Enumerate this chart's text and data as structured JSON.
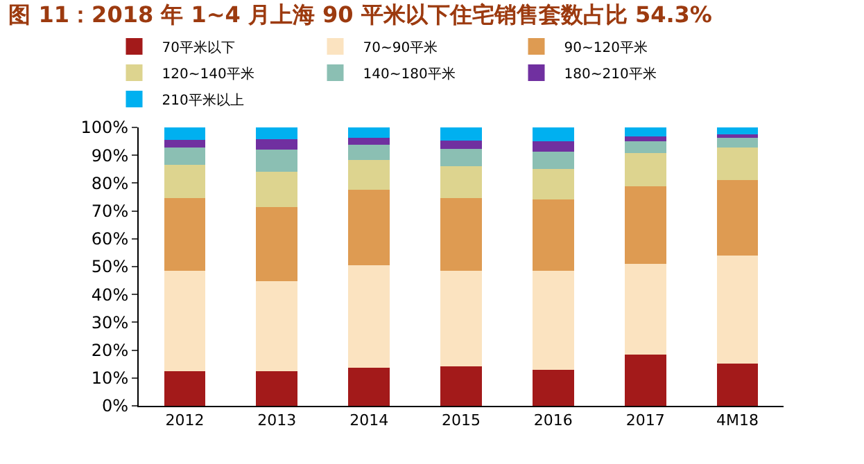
{
  "chart_data": {
    "type": "bar",
    "stacked": true,
    "title": "图 11：2018 年 1~4 月上海 90 平米以下住宅销售套数占比 54.3%",
    "categories": [
      "2012",
      "2013",
      "2014",
      "2015",
      "2016",
      "2017",
      "4M18"
    ],
    "series": [
      {
        "name": "70平米以下",
        "color": "#a31a1a",
        "values": [
          12.5,
          12.5,
          13.7,
          14.3,
          13.0,
          18.3,
          15.1
        ]
      },
      {
        "name": "70~90平米",
        "color": "#fbe3c0",
        "values": [
          36.0,
          32.4,
          36.9,
          34.2,
          35.5,
          32.8,
          38.8
        ]
      },
      {
        "name": "90~120平米",
        "color": "#de9b52",
        "values": [
          26.1,
          26.6,
          27.1,
          26.1,
          25.6,
          27.7,
          27.1
        ]
      },
      {
        "name": "120~140平米",
        "color": "#ddd48f",
        "values": [
          12.0,
          12.5,
          10.5,
          11.5,
          10.9,
          12.0,
          11.9
        ]
      },
      {
        "name": "140~180平米",
        "color": "#8bbfb3",
        "values": [
          6.3,
          8.0,
          5.5,
          6.2,
          6.3,
          4.2,
          3.3
        ]
      },
      {
        "name": "180~210平米",
        "color": "#7030a0",
        "values": [
          2.6,
          3.7,
          2.6,
          3.0,
          3.7,
          1.7,
          1.2
        ]
      },
      {
        "name": "210平米以上",
        "color": "#00b0f0",
        "values": [
          4.5,
          4.3,
          3.7,
          4.7,
          5.0,
          3.3,
          2.6
        ]
      }
    ],
    "ylim": [
      0,
      100
    ],
    "yticks": [
      {
        "value": 0,
        "label": "0%"
      },
      {
        "value": 10,
        "label": "10%"
      },
      {
        "value": 20,
        "label": "20%"
      },
      {
        "value": 30,
        "label": "30%"
      },
      {
        "value": 40,
        "label": "40%"
      },
      {
        "value": 50,
        "label": "50%"
      },
      {
        "value": 60,
        "label": "60%"
      },
      {
        "value": 70,
        "label": "70%"
      },
      {
        "value": 80,
        "label": "80%"
      },
      {
        "value": 90,
        "label": "90%"
      },
      {
        "value": 100,
        "label": "100%"
      }
    ],
    "legend": "top"
  }
}
